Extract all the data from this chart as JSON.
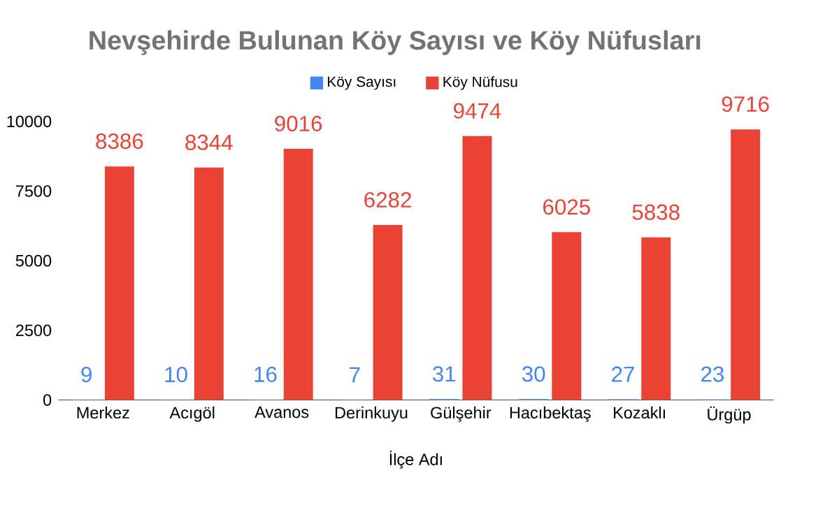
{
  "chart_data": {
    "type": "bar",
    "title": "Nevşehirde Bulunan Köy Sayısı  ve Köy Nüfusları",
    "xlabel": "İlçe Adı",
    "categories": [
      "Merkez",
      "Acıgöl",
      "Avanos",
      "Derinkuyu",
      "Gülşehir",
      "Hacıbektaş",
      "Kozaklı",
      "Ürgüp"
    ],
    "series": [
      {
        "name": "Köy Sayısı",
        "color": "#4285f4",
        "values": [
          9,
          10,
          16,
          7,
          31,
          30,
          27,
          23
        ]
      },
      {
        "name": "Köy Nüfusu",
        "color": "#ea4335",
        "values": [
          8386,
          8344,
          9016,
          6282,
          9474,
          6025,
          5838,
          9716
        ]
      }
    ],
    "ylim": [
      0,
      10000
    ],
    "yticks": [
      0,
      2500,
      5000,
      7500,
      10000
    ],
    "data_labels": true,
    "legend": "top"
  }
}
